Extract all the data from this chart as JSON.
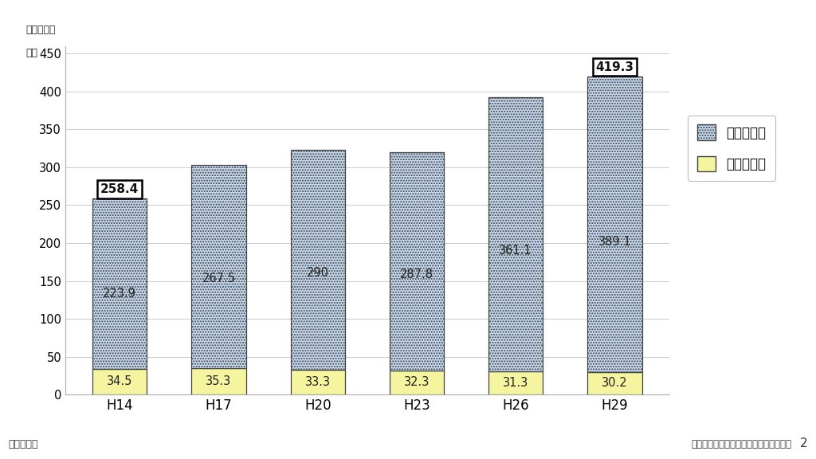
{
  "categories": [
    "H14",
    "H17",
    "H20",
    "H23",
    "H26",
    "H29"
  ],
  "outpatient": [
    223.9,
    267.5,
    290.0,
    287.8,
    361.1,
    389.1
  ],
  "outpatient_strs": [
    "223.9",
    "267.5",
    "290",
    "287.8",
    "361.1",
    "389.1"
  ],
  "inpatient": [
    34.5,
    35.3,
    33.3,
    32.3,
    31.3,
    30.2
  ],
  "inpatient_strs": [
    "34.5",
    "35.3",
    "33.3",
    "32.3",
    "31.3",
    "30.2"
  ],
  "totals": [
    258.4,
    302.8,
    323.3,
    320.1,
    392.4,
    419.3
  ],
  "total_strs": [
    "258.4",
    "",
    "",
    "",
    "",
    "419.3"
  ],
  "outpatient_color": "#c5d9f1",
  "inpatient_color": "#f5f5a0",
  "outpatient_hatch": ".....",
  "bar_edge_color": "#444444",
  "background_color": "#ffffff",
  "unit_label_line1": "（単位：万",
  "unit_label_line2": "人）",
  "yticks": [
    0,
    50,
    100,
    150,
    200,
    250,
    300,
    350,
    400,
    450
  ],
  "ylim": [
    0,
    460
  ],
  "legend_labels": [
    "外来患者数",
    "入院患者数"
  ],
  "source_text": "資料：厚生労働省「患者調査」より作成",
  "page_number": "2",
  "bar_width": 0.55,
  "grid_color": "#cccccc",
  "spine_color": "#aaaaaa"
}
